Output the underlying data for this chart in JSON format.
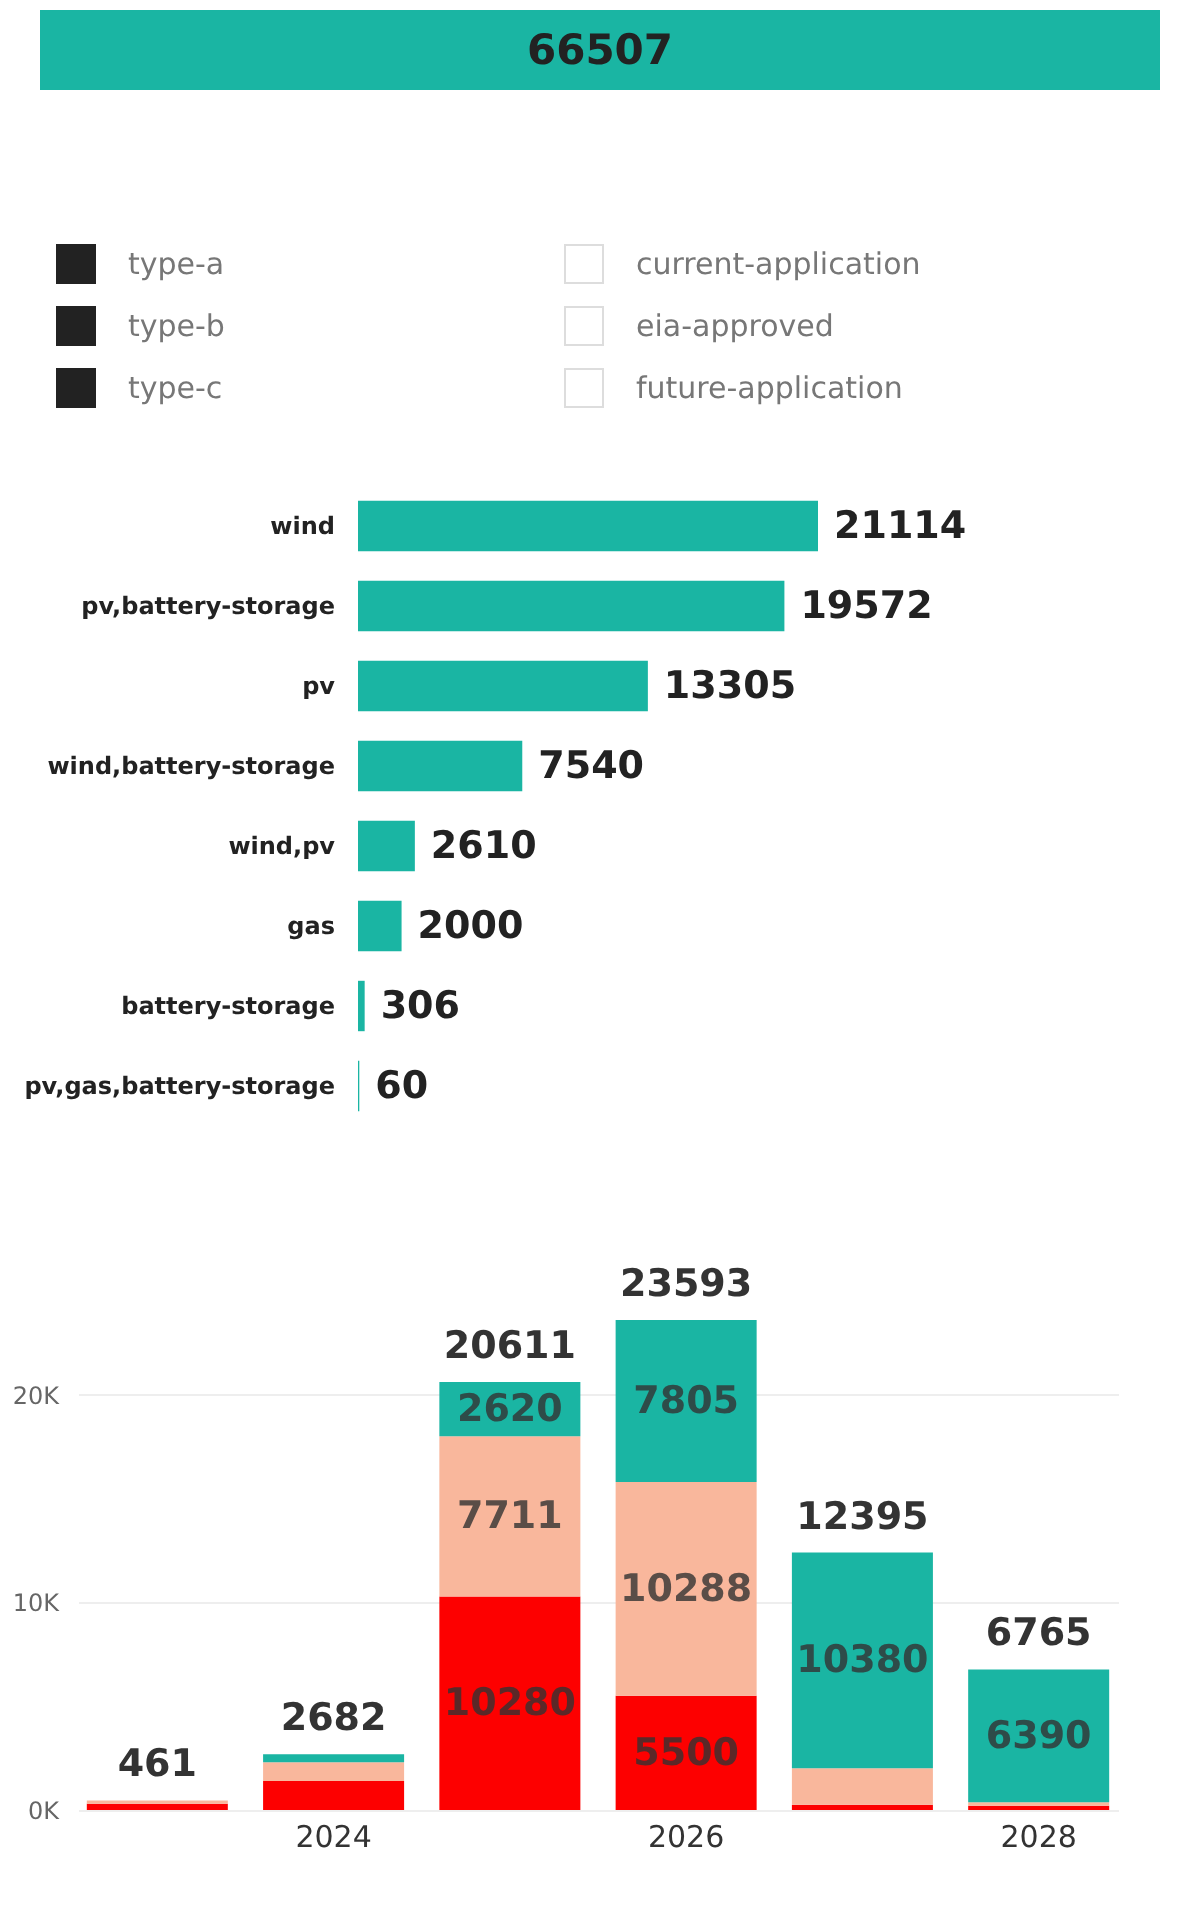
{
  "chart_data": [
    {
      "type": "other",
      "title": "66507",
      "color": "#1ab5a3"
    },
    {
      "type": "other",
      "annotations": [
        "type-a",
        "type-b",
        "type-c"
      ],
      "color": "#222222"
    },
    {
      "type": "other",
      "annotations": [
        "current-application",
        "eia-approved",
        "future-application"
      ]
    },
    {
      "type": "bar",
      "orientation": "horizontal",
      "categories": [
        "wind",
        "pv,battery-storage",
        "pv",
        "wind,battery-storage",
        "wind,pv",
        "gas",
        "battery-storage",
        "pv,gas,battery-storage"
      ],
      "values": [
        21114,
        19572,
        13305,
        7540,
        2610,
        2000,
        306,
        60
      ],
      "color": "#1ab5a3",
      "data_labels": true,
      "tick_labels": "y"
    },
    {
      "type": "bar",
      "stacked": true,
      "categories": [
        null,
        "2024",
        null,
        "2026",
        null,
        "2028"
      ],
      "ylim": [
        0,
        23593
      ],
      "yticks": [
        {
          "value": 0,
          "label": "0K"
        },
        {
          "value": 10000,
          "label": "10K"
        },
        {
          "value": 20000,
          "label": "20K"
        }
      ],
      "grid": "y",
      "series": [
        {
          "color": "#fd0000",
          "values": [
            300,
            1400,
            10280,
            5500,
            250,
            200
          ],
          "value_labels": [
            null,
            null,
            "10280",
            "5500",
            null,
            null
          ]
        },
        {
          "color": "#f9b79c",
          "values": [
            161,
            900,
            7711,
            10288,
            1765,
            175
          ],
          "value_labels": [
            null,
            null,
            "7711",
            "10288",
            null,
            null
          ]
        },
        {
          "color": "#1ab5a3",
          "values": [
            0,
            382,
            2620,
            7805,
            10380,
            6390
          ],
          "value_labels": [
            null,
            null,
            "2620",
            "7805",
            "10380",
            "6390"
          ]
        }
      ],
      "totals": [
        "461",
        "2682",
        "20611",
        "23593",
        "12395",
        "6765"
      ]
    }
  ]
}
